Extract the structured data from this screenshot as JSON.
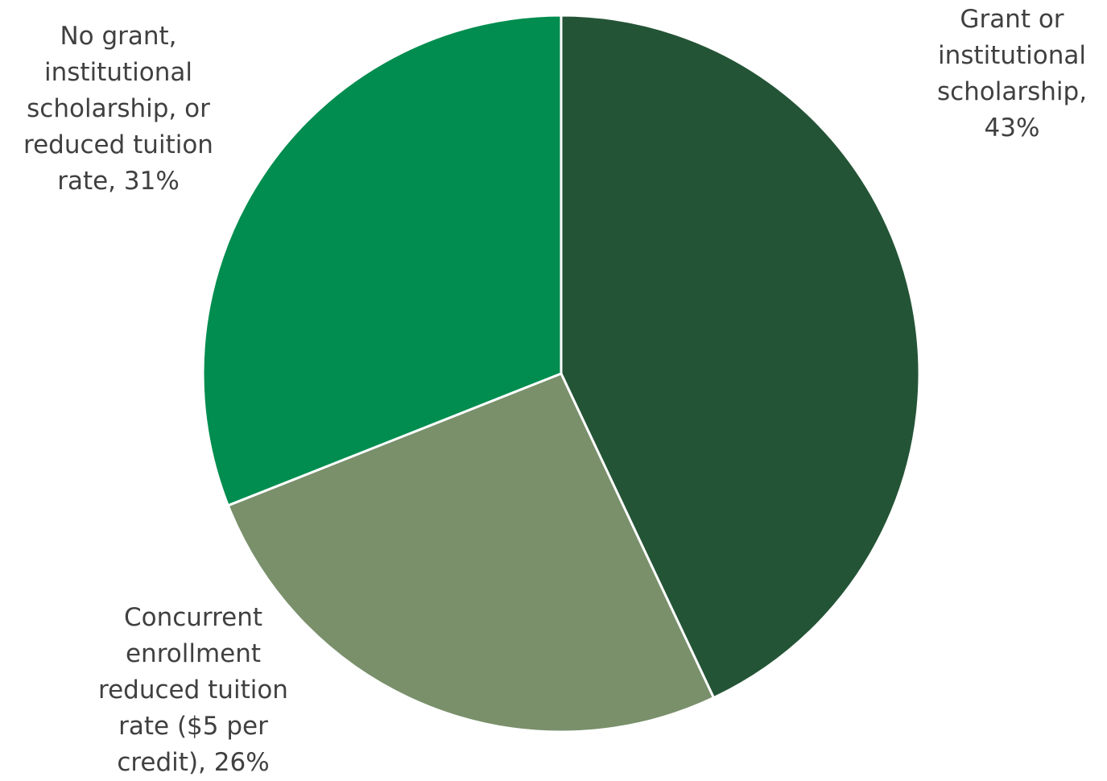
{
  "chart_data": {
    "type": "pie",
    "title": "",
    "slices": [
      {
        "label": "Grant or\ninstitutional\nscholarship,\n43%",
        "category": "Grant or institutional scholarship",
        "value": 43,
        "color": "#245436"
      },
      {
        "label": "Concurrent\nenrollment\nreduced tuition\nrate ($5 per\ncredit), 26%",
        "category": "Concurrent enrollment reduced tuition rate ($5 per credit)",
        "value": 26,
        "color": "#79906B"
      },
      {
        "label": "No grant,\ninstitutional\nscholarship, or\nreduced tuition\nrate, 31%",
        "category": "No grant, institutional scholarship, or reduced tuition rate",
        "value": 31,
        "color": "#008D4F"
      }
    ],
    "start_angle": "12 o'clock",
    "direction": "clockwise",
    "legend": "none"
  }
}
